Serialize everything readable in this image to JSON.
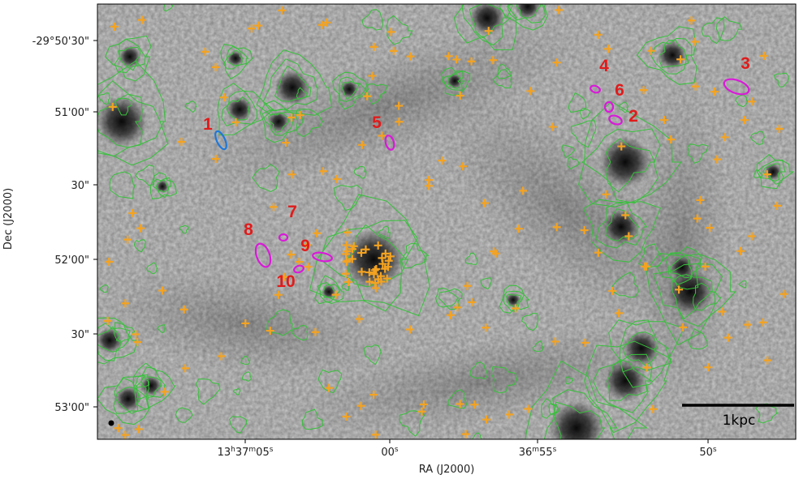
{
  "x_axis": {
    "label": "RA (J2000)",
    "ticks": [
      [
        "13",
        "h",
        "37",
        "m",
        "05",
        "s"
      ],
      [
        "00",
        "s"
      ],
      [
        "36",
        "m",
        "55",
        "s"
      ],
      [
        "50",
        "s"
      ]
    ]
  },
  "y_axis": {
    "label": "Dec (J2000)",
    "ticks": [
      "-29°50'30\"",
      "51'00\"",
      "30\"",
      "52'00\"",
      "30\"",
      "53'00\""
    ]
  },
  "regions": [
    "1",
    "2",
    "3",
    "4",
    "5",
    "6",
    "7",
    "8",
    "9",
    "10"
  ],
  "scale_bar": "1kpc"
}
